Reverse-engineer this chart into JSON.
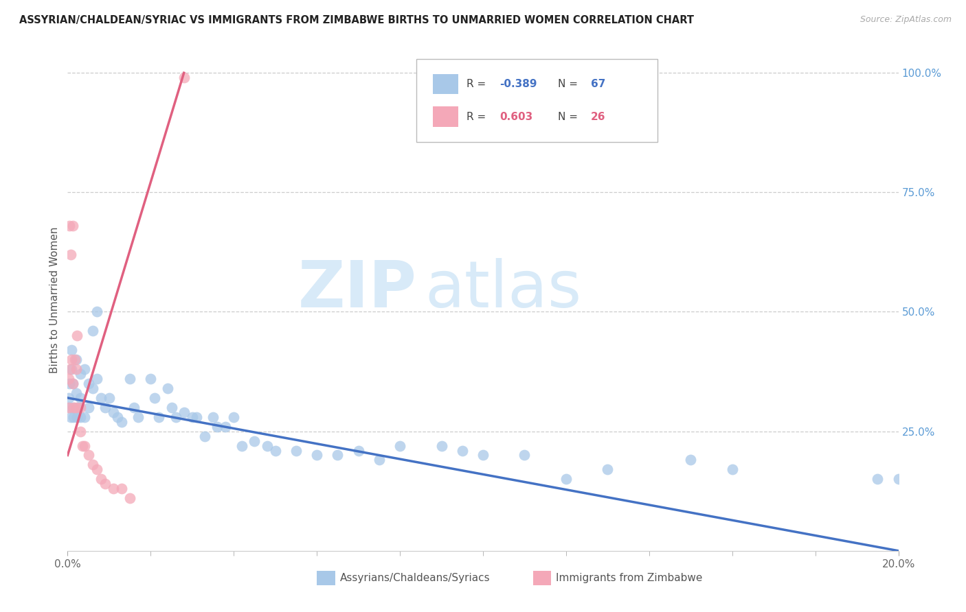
{
  "title": "ASSYRIAN/CHALDEAN/SYRIAC VS IMMIGRANTS FROM ZIMBABWE BIRTHS TO UNMARRIED WOMEN CORRELATION CHART",
  "source": "Source: ZipAtlas.com",
  "ylabel": "Births to Unmarried Women",
  "xlabel_blue": "Assyrians/Chaldeans/Syriacs",
  "xlabel_pink": "Immigrants from Zimbabwe",
  "blue_color": "#a8c8e8",
  "pink_color": "#f4a8b8",
  "trendline_blue": "#4472c4",
  "trendline_pink": "#e06080",
  "watermark_zip": "ZIP",
  "watermark_atlas": "atlas",
  "watermark_color": "#d8eaf8",
  "xlim": [
    0.0,
    0.2
  ],
  "ylim": [
    0.0,
    1.05
  ],
  "blue_scatter_x": [
    0.0003,
    0.0005,
    0.0006,
    0.0008,
    0.001,
    0.001,
    0.0012,
    0.0015,
    0.0015,
    0.002,
    0.002,
    0.0022,
    0.0025,
    0.003,
    0.003,
    0.003,
    0.004,
    0.004,
    0.005,
    0.005,
    0.006,
    0.006,
    0.007,
    0.007,
    0.008,
    0.009,
    0.01,
    0.011,
    0.012,
    0.013,
    0.015,
    0.016,
    0.017,
    0.02,
    0.021,
    0.022,
    0.024,
    0.025,
    0.026,
    0.028,
    0.03,
    0.031,
    0.033,
    0.035,
    0.036,
    0.038,
    0.04,
    0.042,
    0.045,
    0.048,
    0.05,
    0.055,
    0.06,
    0.065,
    0.07,
    0.075,
    0.08,
    0.09,
    0.095,
    0.1,
    0.11,
    0.12,
    0.13,
    0.15,
    0.16,
    0.195,
    0.2
  ],
  "blue_scatter_y": [
    0.32,
    0.35,
    0.3,
    0.28,
    0.42,
    0.38,
    0.35,
    0.3,
    0.28,
    0.4,
    0.33,
    0.28,
    0.3,
    0.37,
    0.32,
    0.28,
    0.38,
    0.28,
    0.35,
    0.3,
    0.46,
    0.34,
    0.5,
    0.36,
    0.32,
    0.3,
    0.32,
    0.29,
    0.28,
    0.27,
    0.36,
    0.3,
    0.28,
    0.36,
    0.32,
    0.28,
    0.34,
    0.3,
    0.28,
    0.29,
    0.28,
    0.28,
    0.24,
    0.28,
    0.26,
    0.26,
    0.28,
    0.22,
    0.23,
    0.22,
    0.21,
    0.21,
    0.2,
    0.2,
    0.21,
    0.19,
    0.22,
    0.22,
    0.21,
    0.2,
    0.2,
    0.15,
    0.17,
    0.19,
    0.17,
    0.15,
    0.15
  ],
  "pink_scatter_x": [
    0.0002,
    0.0003,
    0.0005,
    0.0006,
    0.0008,
    0.001,
    0.0012,
    0.0013,
    0.0015,
    0.0018,
    0.002,
    0.002,
    0.0022,
    0.003,
    0.003,
    0.0035,
    0.004,
    0.005,
    0.006,
    0.007,
    0.008,
    0.009,
    0.011,
    0.013,
    0.015,
    0.028
  ],
  "pink_scatter_y": [
    0.36,
    0.3,
    0.68,
    0.38,
    0.62,
    0.4,
    0.35,
    0.68,
    0.3,
    0.4,
    0.38,
    0.3,
    0.45,
    0.3,
    0.25,
    0.22,
    0.22,
    0.2,
    0.18,
    0.17,
    0.15,
    0.14,
    0.13,
    0.13,
    0.11,
    0.99
  ],
  "trendline_blue_x0": 0.0,
  "trendline_blue_y0": 0.32,
  "trendline_blue_x1": 0.2,
  "trendline_blue_y1": 0.0,
  "trendline_pink_x0": 0.0,
  "trendline_pink_y0": 0.2,
  "trendline_pink_x1": 0.028,
  "trendline_pink_y1": 1.0
}
